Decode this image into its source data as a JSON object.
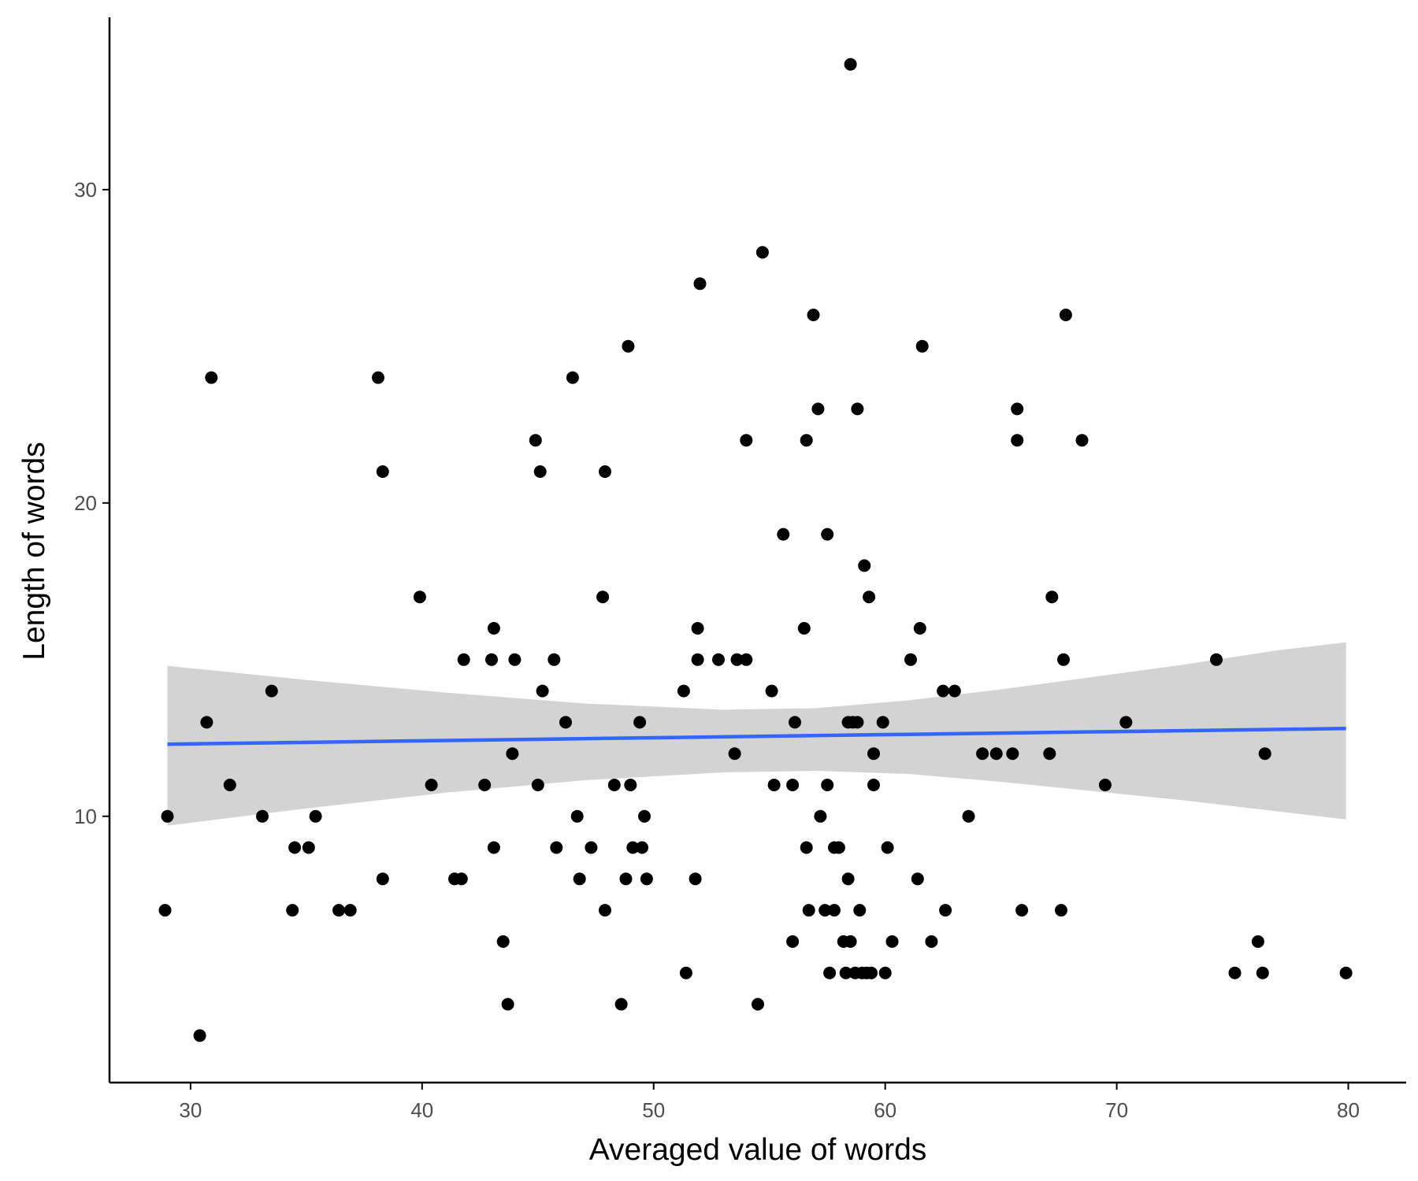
{
  "chart_data": {
    "type": "scatter",
    "title": "",
    "xlabel": "Averaged value of words",
    "ylabel": "Length of words",
    "xlim": [
      26.5,
      82.5
    ],
    "ylim": [
      1.5,
      35.5
    ],
    "x_ticks": [
      30,
      40,
      50,
      60,
      70,
      80
    ],
    "y_ticks": [
      10,
      20,
      30
    ],
    "grid": false,
    "legend": "none",
    "colors": {
      "points": "#000000",
      "fit_line": "#3366FF",
      "ribbon": "#d3d3d3",
      "axis": "#000000",
      "tick_text": "#4d4d4d"
    },
    "points": [
      [
        28.9,
        7
      ],
      [
        29.0,
        10
      ],
      [
        30.4,
        3
      ],
      [
        30.7,
        13
      ],
      [
        30.9,
        24
      ],
      [
        31.7,
        11
      ],
      [
        33.1,
        10
      ],
      [
        33.5,
        14
      ],
      [
        34.4,
        7
      ],
      [
        34.5,
        9
      ],
      [
        35.1,
        9
      ],
      [
        35.4,
        10
      ],
      [
        36.4,
        7
      ],
      [
        36.9,
        7
      ],
      [
        38.1,
        24
      ],
      [
        38.3,
        21
      ],
      [
        38.3,
        8
      ],
      [
        39.9,
        17
      ],
      [
        40.4,
        11
      ],
      [
        41.4,
        8
      ],
      [
        41.7,
        8
      ],
      [
        41.8,
        15
      ],
      [
        42.7,
        11
      ],
      [
        43.1,
        16
      ],
      [
        43.0,
        15
      ],
      [
        43.1,
        9
      ],
      [
        43.5,
        6
      ],
      [
        43.7,
        4
      ],
      [
        43.9,
        12
      ],
      [
        44.0,
        15
      ],
      [
        44.9,
        22
      ],
      [
        45.0,
        11
      ],
      [
        45.1,
        21
      ],
      [
        45.2,
        14
      ],
      [
        45.7,
        15
      ],
      [
        45.8,
        9
      ],
      [
        46.2,
        13
      ],
      [
        46.5,
        24
      ],
      [
        46.7,
        10
      ],
      [
        46.8,
        8
      ],
      [
        47.3,
        9
      ],
      [
        47.8,
        17
      ],
      [
        47.9,
        21
      ],
      [
        47.9,
        7
      ],
      [
        48.3,
        11
      ],
      [
        48.6,
        4
      ],
      [
        48.8,
        8
      ],
      [
        48.9,
        25
      ],
      [
        49.0,
        11
      ],
      [
        49.1,
        9
      ],
      [
        49.4,
        13
      ],
      [
        49.5,
        9
      ],
      [
        49.6,
        10
      ],
      [
        49.7,
        8
      ],
      [
        51.3,
        14
      ],
      [
        51.4,
        5
      ],
      [
        51.8,
        8
      ],
      [
        51.9,
        16
      ],
      [
        51.9,
        15
      ],
      [
        52.0,
        27
      ],
      [
        52.8,
        15
      ],
      [
        53.5,
        12
      ],
      [
        53.6,
        15
      ],
      [
        54.0,
        22
      ],
      [
        54.0,
        15
      ],
      [
        54.5,
        4
      ],
      [
        54.7,
        28
      ],
      [
        55.1,
        14
      ],
      [
        55.2,
        11
      ],
      [
        55.6,
        19
      ],
      [
        56.0,
        11
      ],
      [
        56.0,
        6
      ],
      [
        56.1,
        13
      ],
      [
        56.5,
        16
      ],
      [
        56.6,
        9
      ],
      [
        56.6,
        22
      ],
      [
        56.7,
        7
      ],
      [
        56.9,
        26
      ],
      [
        57.1,
        23
      ],
      [
        57.2,
        10
      ],
      [
        57.4,
        7
      ],
      [
        57.5,
        11
      ],
      [
        57.5,
        19
      ],
      [
        57.6,
        5
      ],
      [
        57.8,
        7
      ],
      [
        57.8,
        9
      ],
      [
        58.0,
        9
      ],
      [
        58.2,
        6
      ],
      [
        58.3,
        5
      ],
      [
        58.4,
        8
      ],
      [
        58.4,
        13
      ],
      [
        58.5,
        34
      ],
      [
        58.5,
        6
      ],
      [
        58.6,
        13
      ],
      [
        58.7,
        5
      ],
      [
        58.8,
        23
      ],
      [
        58.8,
        13
      ],
      [
        58.9,
        7
      ],
      [
        59.0,
        5
      ],
      [
        59.1,
        18
      ],
      [
        59.2,
        5
      ],
      [
        59.3,
        17
      ],
      [
        59.4,
        5
      ],
      [
        59.5,
        12
      ],
      [
        59.5,
        11
      ],
      [
        59.9,
        13
      ],
      [
        60.0,
        5
      ],
      [
        60.1,
        9
      ],
      [
        60.3,
        6
      ],
      [
        61.1,
        15
      ],
      [
        61.4,
        8
      ],
      [
        61.5,
        16
      ],
      [
        61.6,
        25
      ],
      [
        62.0,
        6
      ],
      [
        62.5,
        14
      ],
      [
        62.6,
        7
      ],
      [
        63.0,
        14
      ],
      [
        63.6,
        10
      ],
      [
        64.2,
        12
      ],
      [
        64.8,
        12
      ],
      [
        65.5,
        12
      ],
      [
        65.7,
        23
      ],
      [
        65.7,
        22
      ],
      [
        65.9,
        7
      ],
      [
        67.1,
        12
      ],
      [
        67.2,
        17
      ],
      [
        67.6,
        7
      ],
      [
        67.7,
        15
      ],
      [
        67.8,
        26
      ],
      [
        68.5,
        22
      ],
      [
        69.5,
        11
      ],
      [
        70.4,
        13
      ],
      [
        74.3,
        15
      ],
      [
        75.1,
        5
      ],
      [
        76.1,
        6
      ],
      [
        76.3,
        5
      ],
      [
        76.4,
        12
      ],
      [
        79.9,
        5
      ]
    ],
    "fit_line": {
      "x": [
        29.0,
        79.9
      ],
      "y": [
        12.3,
        12.8
      ]
    },
    "ribbon": {
      "x": [
        29.0,
        35,
        41,
        47,
        53,
        57,
        61,
        65,
        69,
        73,
        77,
        79.9
      ],
      "lower": [
        9.7,
        10.25,
        10.75,
        11.15,
        11.4,
        11.45,
        11.35,
        11.1,
        10.8,
        10.5,
        10.15,
        9.9
      ],
      "upper": [
        14.8,
        14.35,
        13.95,
        13.6,
        13.4,
        13.45,
        13.7,
        14.05,
        14.45,
        14.85,
        15.3,
        15.55
      ]
    }
  }
}
